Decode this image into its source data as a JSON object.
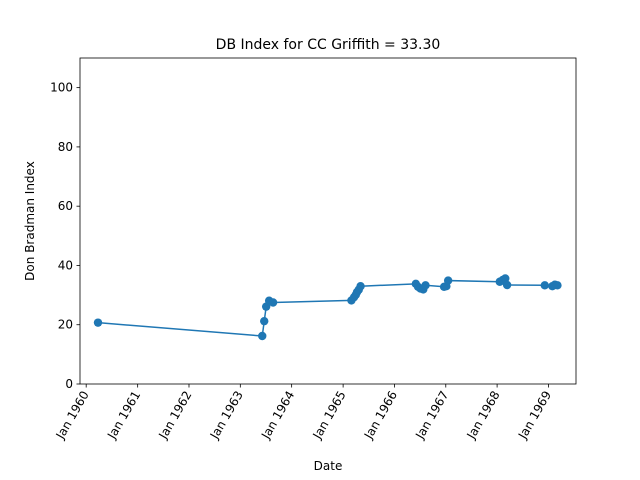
{
  "chart_data": {
    "type": "line",
    "title": "DB Index for CC Griffith = 33.30",
    "xlabel": "Date",
    "ylabel": "Don Bradman Index",
    "ylim": [
      0,
      110
    ],
    "xlim": [
      "1959-11-18",
      "1969-07-15"
    ],
    "x_ticks": [
      {
        "date": "1960-01-01",
        "label": "Jan 1960"
      },
      {
        "date": "1961-01-01",
        "label": "Jan 1961"
      },
      {
        "date": "1962-01-01",
        "label": "Jan 1962"
      },
      {
        "date": "1963-01-01",
        "label": "Jan 1963"
      },
      {
        "date": "1964-01-01",
        "label": "Jan 1964"
      },
      {
        "date": "1965-01-01",
        "label": "Jan 1965"
      },
      {
        "date": "1966-01-01",
        "label": "Jan 1966"
      },
      {
        "date": "1967-01-01",
        "label": "Jan 1967"
      },
      {
        "date": "1968-01-01",
        "label": "Jan 1968"
      },
      {
        "date": "1969-01-01",
        "label": "Jan 1969"
      }
    ],
    "y_ticks": [
      0,
      20,
      40,
      60,
      80,
      100
    ],
    "grid": false,
    "series": [
      {
        "color": "#1f77b4",
        "marker": "circle",
        "points": [
          {
            "x": "1960-03-25",
            "y": 20.7
          },
          {
            "x": "1963-06-06",
            "y": 16.2
          },
          {
            "x": "1963-06-20",
            "y": 21.2
          },
          {
            "x": "1963-07-04",
            "y": 26.1
          },
          {
            "x": "1963-07-25",
            "y": 28.1
          },
          {
            "x": "1963-08-22",
            "y": 27.5
          },
          {
            "x": "1965-03-01",
            "y": 28.2
          },
          {
            "x": "1965-03-20",
            "y": 29.3
          },
          {
            "x": "1965-04-01",
            "y": 30.1
          },
          {
            "x": "1965-04-10",
            "y": 31.0
          },
          {
            "x": "1965-04-22",
            "y": 31.8
          },
          {
            "x": "1965-05-05",
            "y": 33.0
          },
          {
            "x": "1966-06-02",
            "y": 33.8
          },
          {
            "x": "1966-06-18",
            "y": 32.8
          },
          {
            "x": "1966-07-05",
            "y": 32.2
          },
          {
            "x": "1966-07-25",
            "y": 31.9
          },
          {
            "x": "1966-08-10",
            "y": 33.3
          },
          {
            "x": "1966-12-20",
            "y": 32.8
          },
          {
            "x": "1967-01-05",
            "y": 33.0
          },
          {
            "x": "1967-01-18",
            "y": 34.9
          },
          {
            "x": "1968-01-20",
            "y": 34.5
          },
          {
            "x": "1968-02-10",
            "y": 35.1
          },
          {
            "x": "1968-02-28",
            "y": 35.6
          },
          {
            "x": "1968-03-12",
            "y": 33.4
          },
          {
            "x": "1968-12-05",
            "y": 33.3
          },
          {
            "x": "1969-01-28",
            "y": 33.0
          },
          {
            "x": "1969-02-15",
            "y": 33.5
          },
          {
            "x": "1969-03-05",
            "y": 33.3
          }
        ]
      }
    ]
  }
}
